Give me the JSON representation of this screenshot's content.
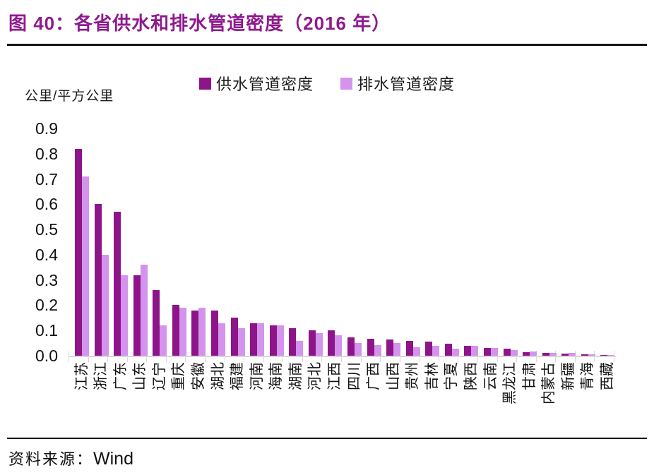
{
  "header": {
    "title": "图 40：各省供水和排水管道密度（2016 年）"
  },
  "footer": {
    "source_label": "资料来源：",
    "source_value": "Wind"
  },
  "chart_data": {
    "type": "bar",
    "title": "各省供水和排水管道密度（2016 年）",
    "unit_label": "公里/平方公里",
    "grid": false,
    "legend_position": "top-center",
    "ylim": [
      0,
      0.9
    ],
    "y_ticks": [
      "0.9",
      "0.8",
      "0.7",
      "0.6",
      "0.5",
      "0.4",
      "0.3",
      "0.2",
      "0.1",
      "0.0"
    ],
    "categories": [
      "江苏",
      "浙江",
      "广东",
      "山东",
      "辽宁",
      "重庆",
      "安徽",
      "湖北",
      "福建",
      "河南",
      "海南",
      "湖南",
      "河北",
      "江西",
      "四川",
      "广西",
      "山西",
      "贵州",
      "吉林",
      "宁夏",
      "陕西",
      "云南",
      "黑龙江",
      "甘肃",
      "内蒙古",
      "新疆",
      "青海",
      "西藏"
    ],
    "series": [
      {
        "name": "供水管道密度",
        "color": "#8E1489",
        "values": [
          0.82,
          0.6,
          0.57,
          0.32,
          0.26,
          0.2,
          0.18,
          0.18,
          0.15,
          0.13,
          0.12,
          0.11,
          0.1,
          0.1,
          0.073,
          0.068,
          0.065,
          0.058,
          0.056,
          0.047,
          0.038,
          0.031,
          0.028,
          0.013,
          0.01,
          0.008,
          0.005,
          0.002
        ]
      },
      {
        "name": "排水管道密度",
        "color": "#D493EC",
        "values": [
          0.71,
          0.4,
          0.32,
          0.36,
          0.12,
          0.19,
          0.19,
          0.13,
          0.11,
          0.13,
          0.12,
          0.06,
          0.09,
          0.08,
          0.051,
          0.042,
          0.051,
          0.035,
          0.039,
          0.028,
          0.04,
          0.032,
          0.022,
          0.018,
          0.012,
          0.01,
          0.006,
          0.003
        ]
      }
    ]
  }
}
